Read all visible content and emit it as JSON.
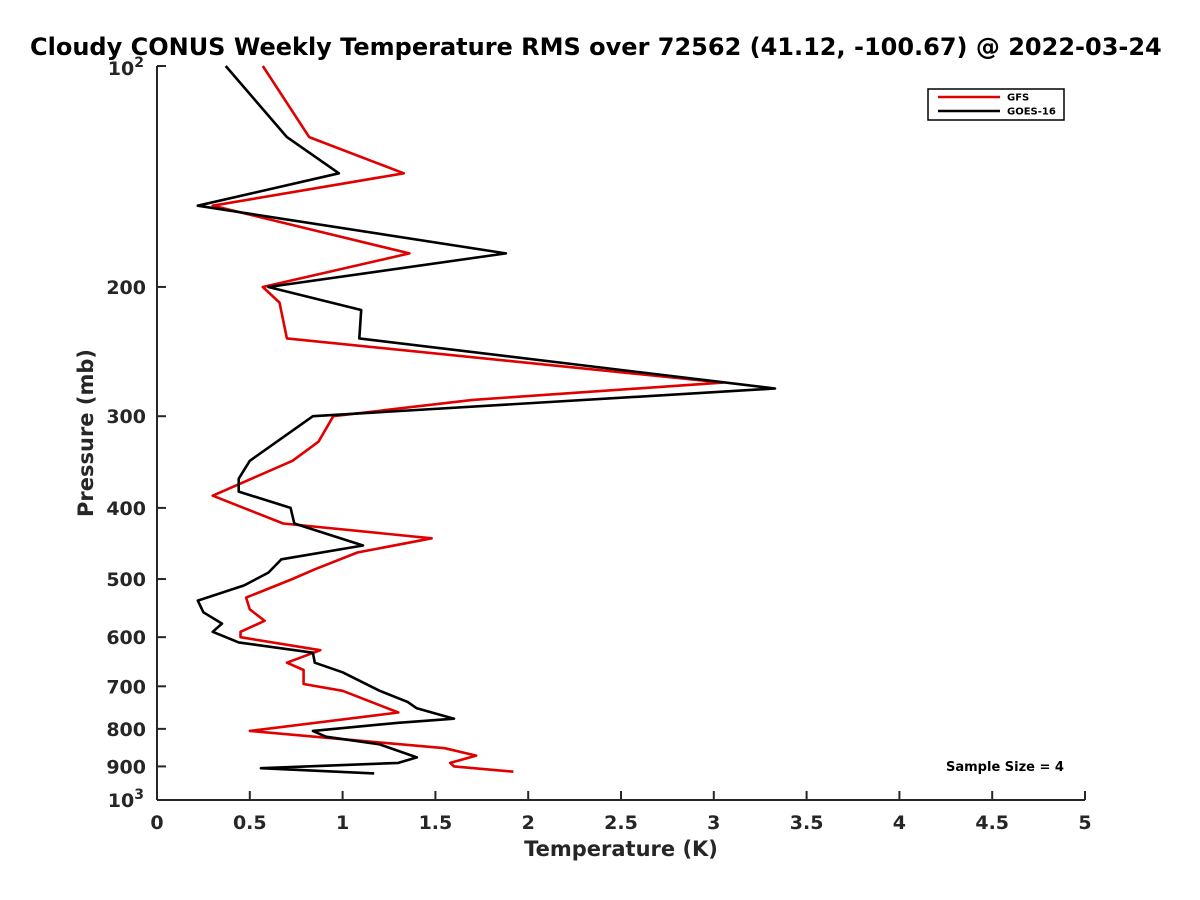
{
  "chart_data": {
    "type": "line",
    "title": "Cloudy CONUS Weekly Temperature RMS over 72562 (41.12, -100.67) @ 2022-03-24",
    "xlabel": "Temperature (K)",
    "ylabel": "Pressure (mb)",
    "xlim": [
      0,
      5
    ],
    "ylim": [
      100,
      1000
    ],
    "y_scale": "log",
    "y_reversed": true,
    "x_ticks": [
      "0",
      "0.5",
      "1",
      "1.5",
      "2",
      "2.5",
      "3",
      "3.5",
      "4",
      "4.5",
      "5"
    ],
    "y_ticks": [
      {
        "value": 100,
        "base": "10",
        "exp": "2"
      },
      {
        "value": 200,
        "label": "200"
      },
      {
        "value": 300,
        "label": "300"
      },
      {
        "value": 400,
        "label": "400"
      },
      {
        "value": 500,
        "label": "500"
      },
      {
        "value": 600,
        "label": "600"
      },
      {
        "value": 700,
        "label": "700"
      },
      {
        "value": 800,
        "label": "800"
      },
      {
        "value": 900,
        "label": "900"
      },
      {
        "value": 1000,
        "base": "10",
        "exp": "3"
      }
    ],
    "legend_position": "top-right",
    "annotation": "Sample Size = 4",
    "series": [
      {
        "name": "GFS",
        "color": "#e00000",
        "points": [
          [
            0.57,
            100
          ],
          [
            0.82,
            125
          ],
          [
            1.33,
            140
          ],
          [
            0.3,
            155
          ],
          [
            1.36,
            180
          ],
          [
            0.57,
            200
          ],
          [
            0.66,
            210
          ],
          [
            0.7,
            235
          ],
          [
            3.05,
            270
          ],
          [
            1.7,
            285
          ],
          [
            0.95,
            300
          ],
          [
            0.87,
            325
          ],
          [
            0.73,
            345
          ],
          [
            0.3,
            385
          ],
          [
            0.68,
            420
          ],
          [
            1.48,
            440
          ],
          [
            1.08,
            460
          ],
          [
            0.85,
            485
          ],
          [
            0.73,
            500
          ],
          [
            0.48,
            530
          ],
          [
            0.5,
            550
          ],
          [
            0.58,
            570
          ],
          [
            0.45,
            590
          ],
          [
            0.45,
            600
          ],
          [
            0.88,
            625
          ],
          [
            0.7,
            650
          ],
          [
            0.79,
            665
          ],
          [
            0.79,
            695
          ],
          [
            1.0,
            710
          ],
          [
            1.3,
            760
          ],
          [
            0.5,
            805
          ],
          [
            1.55,
            850
          ],
          [
            1.72,
            870
          ],
          [
            1.58,
            890
          ],
          [
            1.6,
            900
          ],
          [
            1.92,
            915
          ]
        ]
      },
      {
        "name": "GOES-16",
        "color": "#000000",
        "points": [
          [
            0.37,
            100
          ],
          [
            0.7,
            125
          ],
          [
            0.98,
            140
          ],
          [
            0.22,
            155
          ],
          [
            1.88,
            180
          ],
          [
            0.6,
            200
          ],
          [
            1.1,
            215
          ],
          [
            1.09,
            235
          ],
          [
            3.33,
            275
          ],
          [
            0.84,
            300
          ],
          [
            0.5,
            345
          ],
          [
            0.44,
            365
          ],
          [
            0.44,
            380
          ],
          [
            0.72,
            400
          ],
          [
            0.74,
            420
          ],
          [
            1.11,
            450
          ],
          [
            0.67,
            470
          ],
          [
            0.6,
            490
          ],
          [
            0.47,
            510
          ],
          [
            0.22,
            535
          ],
          [
            0.25,
            555
          ],
          [
            0.35,
            575
          ],
          [
            0.3,
            590
          ],
          [
            0.44,
            610
          ],
          [
            0.84,
            630
          ],
          [
            0.85,
            650
          ],
          [
            1.0,
            670
          ],
          [
            1.2,
            710
          ],
          [
            1.35,
            735
          ],
          [
            1.4,
            750
          ],
          [
            1.6,
            775
          ],
          [
            1.3,
            785
          ],
          [
            0.84,
            805
          ],
          [
            0.91,
            820
          ],
          [
            1.2,
            840
          ],
          [
            1.4,
            875
          ],
          [
            1.3,
            890
          ],
          [
            0.56,
            905
          ],
          [
            1.17,
            920
          ]
        ]
      }
    ]
  }
}
